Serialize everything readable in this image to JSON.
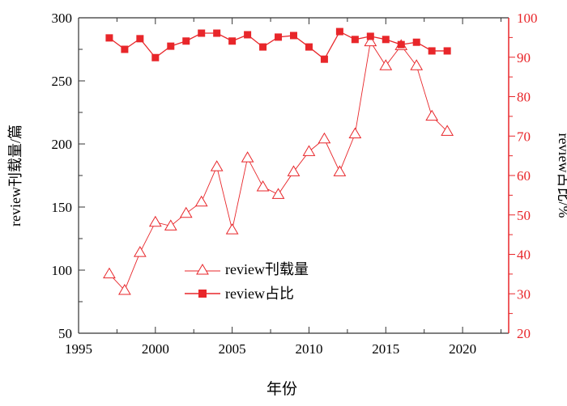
{
  "chart_data": {
    "type": "line",
    "xlabel": "年份",
    "ylabel_left": "review刊载量/篇",
    "ylabel_right": "review占比/%",
    "xlim": [
      1995,
      2023
    ],
    "ylim_left": [
      50,
      300
    ],
    "ylim_right": [
      20,
      100
    ],
    "x_ticks": [
      "1995",
      "2000",
      "2005",
      "2010",
      "2015",
      "2020"
    ],
    "y_left_ticks": [
      "50",
      "100",
      "150",
      "200",
      "250",
      "300"
    ],
    "y_right_ticks": [
      "20",
      "30",
      "40",
      "50",
      "60",
      "70",
      "80",
      "90",
      "100"
    ],
    "grid": false,
    "legend_position": "lower-center",
    "x": [
      1997,
      1998,
      1999,
      2000,
      2001,
      2002,
      2003,
      2004,
      2005,
      2006,
      2007,
      2008,
      2009,
      2010,
      2011,
      2012,
      2013,
      2014,
      2015,
      2016,
      2017,
      2018,
      2019
    ],
    "series": [
      {
        "name": "review刊载量",
        "axis": "left",
        "marker": "open-triangle",
        "color": "#e8262a",
        "values": [
          97,
          84,
          114,
          138,
          135,
          145,
          154,
          182,
          132,
          189,
          166,
          160,
          178,
          194,
          204,
          178,
          208,
          281,
          262,
          278,
          262,
          222,
          210
        ]
      },
      {
        "name": "review占比",
        "axis": "right",
        "marker": "filled-square",
        "color": "#e8262a",
        "values": [
          94.9,
          92.0,
          94.7,
          89.9,
          92.8,
          94.1,
          96.1,
          96.1,
          94.1,
          95.7,
          92.6,
          95.1,
          95.5,
          92.6,
          89.5,
          96.5,
          94.5,
          95.3,
          94.5,
          93.2,
          93.8,
          91.6,
          91.6
        ]
      }
    ]
  }
}
